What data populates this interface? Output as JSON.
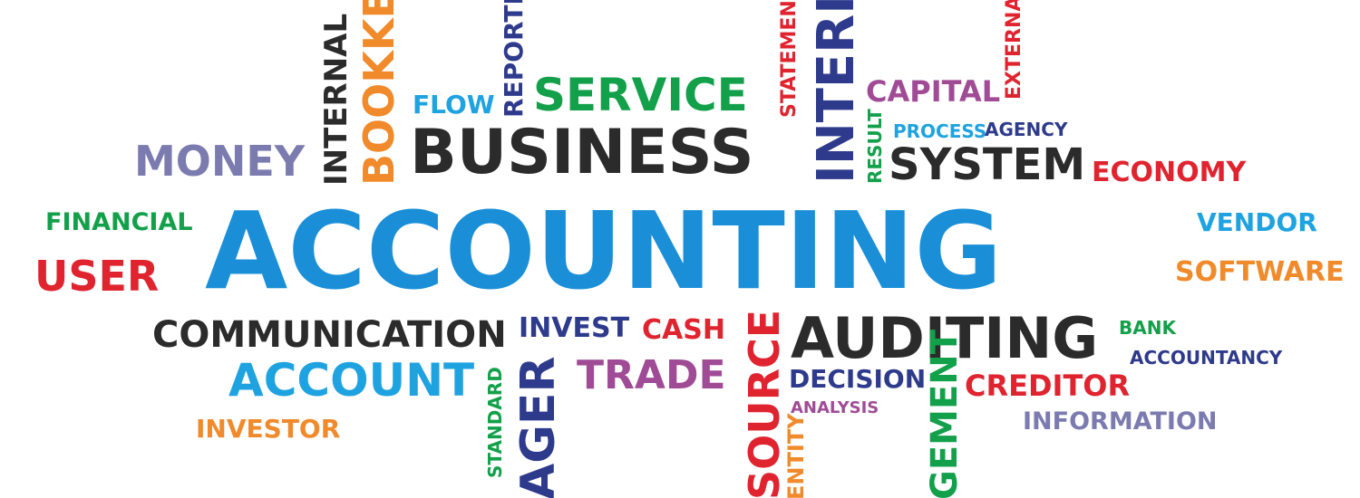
{
  "words": [
    {
      "key": "accounting",
      "text": "ACCOUNTING",
      "color": "#1a8fd8",
      "vertical": false
    },
    {
      "key": "business",
      "text": "BUSINESS",
      "color": "#2b2b2b",
      "vertical": false
    },
    {
      "key": "service",
      "text": "SERVICE",
      "color": "#13a04a",
      "vertical": false
    },
    {
      "key": "money",
      "text": "MONEY",
      "color": "#7b7bb0",
      "vertical": false
    },
    {
      "key": "flow",
      "text": "FLOW",
      "color": "#1fa3e0",
      "vertical": false
    },
    {
      "key": "capital",
      "text": "CAPITAL",
      "color": "#a04b96",
      "vertical": false
    },
    {
      "key": "process",
      "text": "PROCESS",
      "color": "#1fa3e0",
      "vertical": false
    },
    {
      "key": "agency",
      "text": "AGENCY",
      "color": "#2e3a8c",
      "vertical": false
    },
    {
      "key": "system",
      "text": "SYSTEM",
      "color": "#2b2b2b",
      "vertical": false
    },
    {
      "key": "economy",
      "text": "ECONOMY",
      "color": "#e0242f",
      "vertical": false
    },
    {
      "key": "financial",
      "text": "FINANCIAL",
      "color": "#13a04a",
      "vertical": false
    },
    {
      "key": "user",
      "text": "USER",
      "color": "#e0242f",
      "vertical": false
    },
    {
      "key": "vendor",
      "text": "VENDOR",
      "color": "#1fa3e0",
      "vertical": false
    },
    {
      "key": "software",
      "text": "SOFTWARE",
      "color": "#f08a2a",
      "vertical": false
    },
    {
      "key": "communication",
      "text": "COMMUNICATION",
      "color": "#2b2b2b",
      "vertical": false
    },
    {
      "key": "invest",
      "text": "INVEST",
      "color": "#2e3a8c",
      "vertical": false
    },
    {
      "key": "cash",
      "text": "CASH",
      "color": "#e0242f",
      "vertical": false
    },
    {
      "key": "auditing",
      "text": "AUDITING",
      "color": "#2b2b2b",
      "vertical": false
    },
    {
      "key": "bank",
      "text": "BANK",
      "color": "#13a04a",
      "vertical": false
    },
    {
      "key": "accountancy",
      "text": "ACCOUNTANCY",
      "color": "#2e3a8c",
      "vertical": false
    },
    {
      "key": "account",
      "text": "ACCOUNT",
      "color": "#1fa3e0",
      "vertical": false
    },
    {
      "key": "trade",
      "text": "TRADE",
      "color": "#a04b96",
      "vertical": false
    },
    {
      "key": "decision",
      "text": "DECISION",
      "color": "#2e3a8c",
      "vertical": false
    },
    {
      "key": "creditor",
      "text": "CREDITOR",
      "color": "#e0242f",
      "vertical": false
    },
    {
      "key": "analysis",
      "text": "ANALYSIS",
      "color": "#a04b96",
      "vertical": false
    },
    {
      "key": "information",
      "text": "INFORMATION",
      "color": "#7b7bb0",
      "vertical": false
    },
    {
      "key": "investor",
      "text": "INVESTOR",
      "color": "#f08a2a",
      "vertical": false
    },
    {
      "key": "internal",
      "text": "INTERNAL",
      "color": "#2b2b2b",
      "vertical": true
    },
    {
      "key": "bookke",
      "text": "BOOKKE",
      "color": "#f08a2a",
      "vertical": true
    },
    {
      "key": "reporti",
      "text": "REPORTI",
      "color": "#2e3a8c",
      "vertical": true
    },
    {
      "key": "statement",
      "text": "STATEMENT",
      "color": "#e0242f",
      "vertical": true
    },
    {
      "key": "interi",
      "text": "INTERI",
      "color": "#2e3a8c",
      "vertical": true
    },
    {
      "key": "result",
      "text": "RESULT",
      "color": "#13a04a",
      "vertical": true
    },
    {
      "key": "externa",
      "text": "EXTERNA",
      "color": "#e0242f",
      "vertical": true
    },
    {
      "key": "standard",
      "text": "STANDARD",
      "color": "#13a04a",
      "vertical": true
    },
    {
      "key": "ager",
      "text": "AGER",
      "color": "#2e3a8c",
      "vertical": true
    },
    {
      "key": "source",
      "text": "SOURCE",
      "color": "#e0242f",
      "vertical": true
    },
    {
      "key": "entity",
      "text": "ENTITY",
      "color": "#f08a2a",
      "vertical": true
    },
    {
      "key": "gement",
      "text": "GEMENT",
      "color": "#13a04a",
      "vertical": true
    }
  ]
}
